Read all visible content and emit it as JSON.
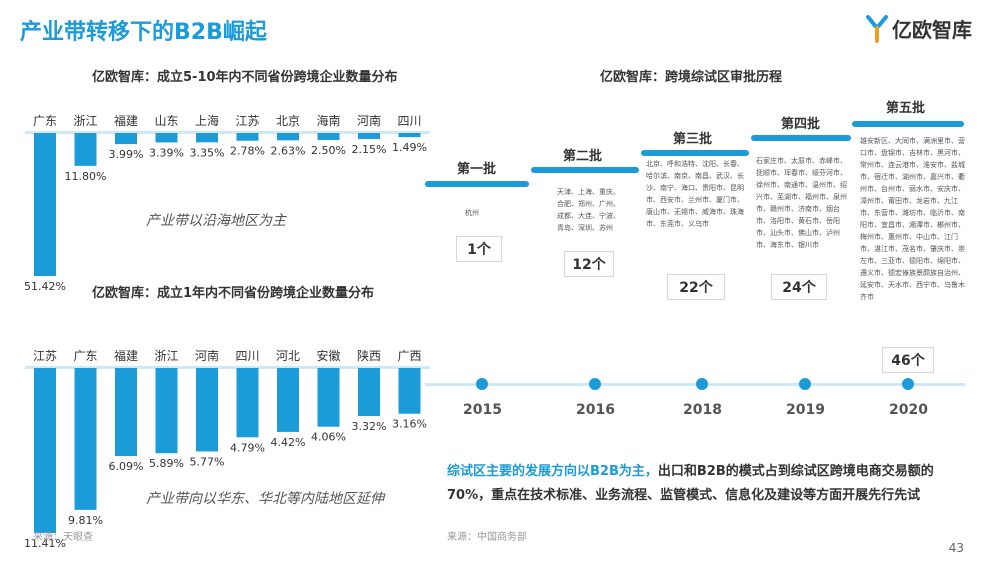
{
  "header": {
    "title": "产业带转移下的B2B崛起",
    "logo_text": "亿欧智库",
    "page_number": "43"
  },
  "chart_data": [
    {
      "type": "bar",
      "title": "亿欧智库：成立5-10年内不同省份跨境企业数量分布",
      "categories": [
        "广东",
        "浙江",
        "福建",
        "山东",
        "上海",
        "江苏",
        "北京",
        "海南",
        "河南",
        "四川"
      ],
      "values": [
        51.42,
        11.8,
        3.99,
        3.39,
        3.35,
        2.78,
        2.63,
        2.5,
        2.15,
        1.49
      ],
      "value_labels": [
        "51.42%",
        "11.80%",
        "3.99%",
        "3.39%",
        "3.35%",
        "2.78%",
        "2.63%",
        "2.50%",
        "2.15%",
        "1.49%"
      ],
      "color": "#1b9bd8",
      "annotation": "产业带以沿海地区为主",
      "source": "来源：天眼查"
    },
    {
      "type": "bar",
      "title": "亿欧智库：成立1年内不同省份跨境企业数量分布",
      "categories": [
        "江苏",
        "广东",
        "福建",
        "浙江",
        "河南",
        "四川",
        "河北",
        "安徽",
        "陕西",
        "广西"
      ],
      "values": [
        11.41,
        9.81,
        6.09,
        5.89,
        5.77,
        4.79,
        4.42,
        4.06,
        3.32,
        3.16
      ],
      "value_labels": [
        "11.41%",
        "9.81%",
        "6.09%",
        "5.89%",
        "5.77%",
        "4.79%",
        "4.42%",
        "4.06%",
        "3.32%",
        "3.16%"
      ],
      "color": "#1b9bd8",
      "annotation": "产业带向以华东、华北等内陆地区延伸"
    }
  ],
  "timeline": {
    "title": "亿欧智库：跨境综试区审批历程",
    "batches": [
      {
        "label": "第一批",
        "year": "2015",
        "count": "1个",
        "cities": "杭州"
      },
      {
        "label": "第二批",
        "year": "2016",
        "count": "12个",
        "cities": "天津、上海、重庆、合肥、郑州、广州、成都、大连、宁波、青岛、深圳、苏州"
      },
      {
        "label": "第三批",
        "year": "2018",
        "count": "22个",
        "cities": "北京、呼和浩特、沈阳、长春、哈尔滨、南京、南昌、武汉、长沙、南宁、海口、贵阳市、昆明市、西安市、兰州市、厦门市、唐山市、无锡市、威海市、珠海市、东莞市、义乌市"
      },
      {
        "label": "第四批",
        "year": "2019",
        "count": "24个",
        "cities": "石家庄市、太原市、赤峰市、抚顺市、珲春市、绥芬河市、徐州市、南通市、温州市、绍兴市、芜湖市、福州市、泉州市、赣州市、济南市、烟台市、洛阳市、黄石市、岳阳市、汕头市、佛山市、泸州市、海东市、银川市"
      },
      {
        "label": "第五批",
        "year": "2020",
        "count": "46个",
        "cities": "雄安新区、大同市、满洲里市、营口市、盘锦市、吉林市、黑河市、常州市、连云港市、淮安市、盐城市、宿迁市、湖州市、嘉兴市、衢州市、台州市、丽水市、安庆市、漳州市、莆田市、龙岩市、九江市、东营市、潍坊市、临沂市、南阳市、宜昌市、湘潭市、郴州市、梅州市、惠州市、中山市、江门市、湛江市、茂名市、肇庆市、崇左市、三亚市、德阳市、绵阳市、遵义市、德宏傣族景颇族自治州、延安市、天水市、西宁市、乌鲁木齐市"
      }
    ],
    "summary_highlight": "综试区主要的发展方向以B2B为主，",
    "summary_rest": "出口和B2B的模式占到综试区跨境电商交易额的70%，重点在技术标准、业务流程、监管模式、信息化及建设等方面开展先行先试",
    "source": "来源：中国商务部"
  }
}
